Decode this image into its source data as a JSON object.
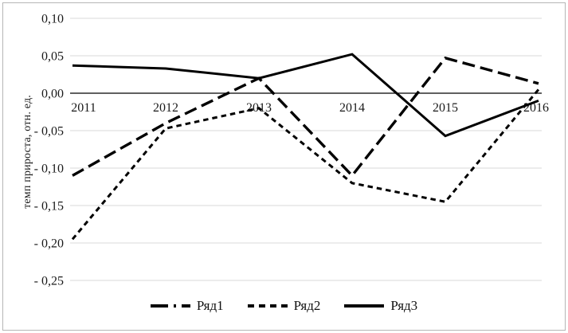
{
  "chart_data": {
    "type": "line",
    "ylabel": "темп прироста, отн. ед.",
    "x": [
      "2011",
      "2012",
      "2013",
      "2014",
      "2015",
      "2016"
    ],
    "y_ticks": [
      {
        "v": 0.1,
        "label": "0,10"
      },
      {
        "v": 0.05,
        "label": "0,05"
      },
      {
        "v": 0.0,
        "label": "0,00"
      },
      {
        "v": -0.05,
        "label": "- 0,05"
      },
      {
        "v": -0.1,
        "label": "- 0,10"
      },
      {
        "v": -0.15,
        "label": "- 0,15"
      },
      {
        "v": -0.2,
        "label": "- 0,20"
      },
      {
        "v": -0.25,
        "label": "- 0,25"
      }
    ],
    "ylim": [
      -0.27,
      0.113
    ],
    "grid": true,
    "legend_position": "bottom-center",
    "series": [
      {
        "name": "Ряд1",
        "style": "long-dash",
        "values": [
          -0.11,
          -0.04,
          0.02,
          -0.11,
          0.047,
          0.013
        ]
      },
      {
        "name": "Ряд2",
        "style": "short-dash",
        "values": [
          -0.195,
          -0.047,
          -0.02,
          -0.12,
          -0.145,
          0.005
        ]
      },
      {
        "name": "Ряд3",
        "style": "solid",
        "values": [
          0.037,
          0.033,
          0.02,
          0.052,
          -0.057,
          -0.01
        ]
      }
    ],
    "colors": {
      "series": "#000000",
      "gridline": "#d9d9d9",
      "axis": "#000000",
      "frame_border": "#b5b5b5",
      "background": "#ffffff",
      "text": "#1a1a1a"
    }
  }
}
